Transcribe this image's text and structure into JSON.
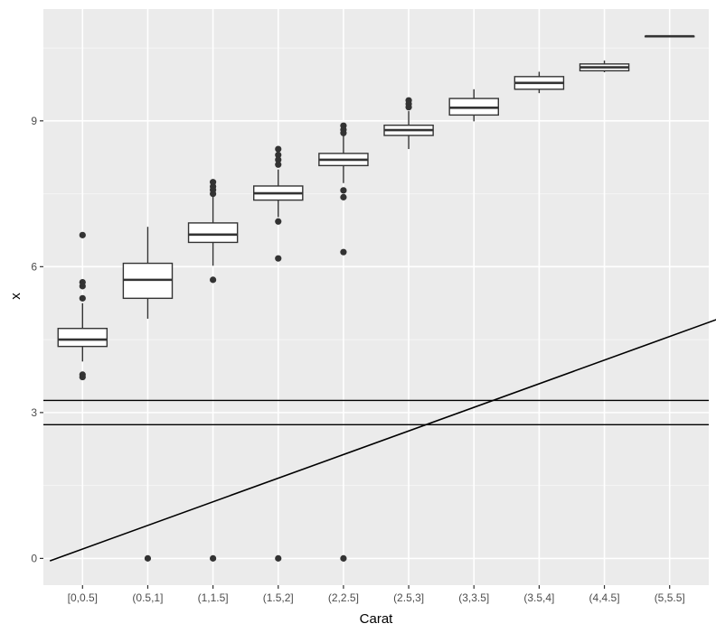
{
  "chart_data": {
    "type": "box",
    "title": "",
    "xlabel": "Carat",
    "ylabel": "x",
    "categories": [
      "[0,0.5]",
      "(0.5,1]",
      "(1,1.5]",
      "(1.5,2]",
      "(2,2.5]",
      "(2.5,3]",
      "(3,3.5]",
      "(3.5,4]",
      "(4,4.5]",
      "(5,5.5]"
    ],
    "ylim": [
      -0.55,
      11.3
    ],
    "yticks": [
      0,
      3,
      6,
      9
    ],
    "ytick_labels": [
      "0",
      "3",
      "6",
      "9"
    ],
    "grid": true,
    "boxes": [
      {
        "category": "[0,0.5]",
        "low": 4.05,
        "q1": 4.36,
        "median": 4.5,
        "q3": 4.73,
        "high": 5.25,
        "outliers": [
          6.65,
          5.68,
          5.6,
          5.35,
          3.78,
          3.73
        ]
      },
      {
        "category": "(0.5,1]",
        "low": 4.93,
        "q1": 5.35,
        "median": 5.73,
        "q3": 6.07,
        "high": 6.82,
        "outliers": [
          0
        ]
      },
      {
        "category": "(1,1.5]",
        "low": 6.02,
        "q1": 6.5,
        "median": 6.66,
        "q3": 6.9,
        "high": 7.47,
        "outliers": [
          7.74,
          7.65,
          7.58,
          7.5,
          5.73,
          0
        ]
      },
      {
        "category": "(1.5,2]",
        "low": 7.02,
        "q1": 7.37,
        "median": 7.51,
        "q3": 7.66,
        "high": 8.0,
        "outliers": [
          8.42,
          8.3,
          8.2,
          8.1,
          6.93,
          6.17,
          0
        ]
      },
      {
        "category": "(2,2.5]",
        "low": 7.72,
        "q1": 8.08,
        "median": 8.2,
        "q3": 8.33,
        "high": 8.7,
        "outliers": [
          8.9,
          8.82,
          8.75,
          7.57,
          7.43,
          6.3,
          0
        ]
      },
      {
        "category": "(2.5,3]",
        "low": 8.42,
        "q1": 8.7,
        "median": 8.81,
        "q3": 8.91,
        "high": 9.2,
        "outliers": [
          9.42,
          9.35,
          9.28
        ]
      },
      {
        "category": "(3,3.5]",
        "low": 8.99,
        "q1": 9.12,
        "median": 9.27,
        "q3": 9.46,
        "high": 9.65,
        "outliers": []
      },
      {
        "category": "(3.5,4]",
        "low": 9.57,
        "q1": 9.65,
        "median": 9.78,
        "q3": 9.91,
        "high": 10.01,
        "outliers": []
      },
      {
        "category": "(4,4.5]",
        "low": 10.0,
        "q1": 10.03,
        "median": 10.1,
        "q3": 10.17,
        "high": 10.24,
        "outliers": []
      },
      {
        "category": "(5,5.5]",
        "low": 10.74,
        "q1": 10.74,
        "median": 10.74,
        "q3": 10.74,
        "high": 10.74,
        "outliers": []
      }
    ],
    "reference_lines": [
      {
        "type": "horizontal",
        "y": 3.25
      },
      {
        "type": "horizontal",
        "y": 2.75
      },
      {
        "type": "diagonal",
        "x_start": 0.5,
        "y_start": -0.05,
        "x_end": 11.0,
        "y_end": 5.05
      }
    ],
    "colors": {
      "panel_background": "#ebebeb",
      "grid_major": "#ffffff",
      "box_fill": "#ffffff",
      "box_stroke": "#333333",
      "outlier": "#333333",
      "reference_line": "#000000"
    }
  }
}
